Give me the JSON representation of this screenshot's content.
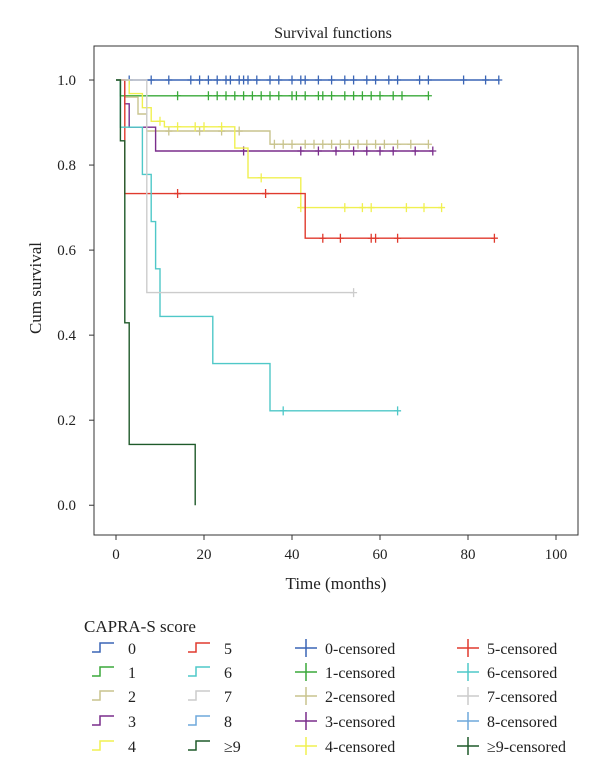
{
  "chart_data": {
    "type": "line",
    "subtype": "kaplan-meier step",
    "title": "Survival functions",
    "xlabel": "Time (months)",
    "ylabel": "Cum survival",
    "xlim": [
      -5,
      105
    ],
    "ylim": [
      -0.07,
      1.08
    ],
    "x_ticks": [
      0,
      20,
      40,
      60,
      80,
      100
    ],
    "y_ticks": [
      0.0,
      0.2,
      0.4,
      0.6,
      0.8,
      1.0
    ],
    "x_tick_labels": [
      "0",
      "20",
      "40",
      "60",
      "80",
      "100"
    ],
    "y_tick_labels": [
      "0.0",
      "0.2",
      "0.4",
      "0.6",
      "0.8",
      "1.0"
    ],
    "grid": false,
    "legend": {
      "title": "CAPRA-S score",
      "placement": "bottom",
      "censored_suffix": "-censored"
    },
    "series": [
      {
        "name": "0",
        "color": "#3a65b5",
        "steps": [
          [
            0,
            1.0
          ],
          [
            87,
            1.0
          ]
        ],
        "censored": [
          [
            3,
            1.0
          ],
          [
            8,
            1.0
          ],
          [
            12,
            1.0
          ],
          [
            17,
            1.0
          ],
          [
            19,
            1.0
          ],
          [
            21,
            1.0
          ],
          [
            23,
            1.0
          ],
          [
            25,
            1.0
          ],
          [
            26,
            1.0
          ],
          [
            28,
            1.0
          ],
          [
            29,
            1.0
          ],
          [
            30,
            1.0
          ],
          [
            32,
            1.0
          ],
          [
            35,
            1.0
          ],
          [
            37,
            1.0
          ],
          [
            40,
            1.0
          ],
          [
            42,
            1.0
          ],
          [
            43,
            1.0
          ],
          [
            46,
            1.0
          ],
          [
            49,
            1.0
          ],
          [
            52,
            1.0
          ],
          [
            54,
            1.0
          ],
          [
            57,
            1.0
          ],
          [
            59,
            1.0
          ],
          [
            62,
            1.0
          ],
          [
            64,
            1.0
          ],
          [
            69,
            1.0
          ],
          [
            71,
            1.0
          ],
          [
            79,
            1.0
          ],
          [
            84,
            1.0
          ],
          [
            87,
            1.0
          ]
        ]
      },
      {
        "name": "1",
        "color": "#3aa93a",
        "steps": [
          [
            0,
            1.0
          ],
          [
            1,
            1.0
          ],
          [
            1,
            0.963
          ],
          [
            71,
            0.963
          ]
        ],
        "censored": [
          [
            14,
            0.963
          ],
          [
            21,
            0.963
          ],
          [
            23,
            0.963
          ],
          [
            25,
            0.963
          ],
          [
            27,
            0.963
          ],
          [
            29,
            0.963
          ],
          [
            31,
            0.963
          ],
          [
            33,
            0.963
          ],
          [
            35,
            0.963
          ],
          [
            37,
            0.963
          ],
          [
            40,
            0.963
          ],
          [
            41,
            0.963
          ],
          [
            43,
            0.963
          ],
          [
            46,
            0.963
          ],
          [
            47,
            0.963
          ],
          [
            49,
            0.963
          ],
          [
            52,
            0.963
          ],
          [
            54,
            0.963
          ],
          [
            56,
            0.963
          ],
          [
            58,
            0.963
          ],
          [
            60,
            0.963
          ],
          [
            63,
            0.963
          ],
          [
            65,
            0.963
          ],
          [
            71,
            0.963
          ]
        ]
      },
      {
        "name": "2",
        "color": "#c9c48e",
        "steps": [
          [
            0,
            1.0
          ],
          [
            2,
            1.0
          ],
          [
            2,
            0.96
          ],
          [
            5,
            0.96
          ],
          [
            5,
            0.92
          ],
          [
            7,
            0.92
          ],
          [
            7,
            0.88
          ],
          [
            35,
            0.88
          ],
          [
            35,
            0.849
          ],
          [
            71,
            0.849
          ]
        ],
        "censored": [
          [
            12,
            0.88
          ],
          [
            19,
            0.88
          ],
          [
            24,
            0.88
          ],
          [
            28,
            0.88
          ],
          [
            36,
            0.849
          ],
          [
            38,
            0.849
          ],
          [
            40,
            0.849
          ],
          [
            43,
            0.849
          ],
          [
            45,
            0.849
          ],
          [
            47,
            0.849
          ],
          [
            49,
            0.849
          ],
          [
            51,
            0.849
          ],
          [
            53,
            0.849
          ],
          [
            55,
            0.849
          ],
          [
            57,
            0.849
          ],
          [
            59,
            0.849
          ],
          [
            61,
            0.849
          ],
          [
            64,
            0.849
          ],
          [
            67,
            0.849
          ],
          [
            71,
            0.849
          ]
        ]
      },
      {
        "name": "3",
        "color": "#7a2d8c",
        "steps": [
          [
            0,
            1.0
          ],
          [
            2,
            1.0
          ],
          [
            2,
            0.944
          ],
          [
            3,
            0.944
          ],
          [
            3,
            0.889
          ],
          [
            9,
            0.889
          ],
          [
            9,
            0.833
          ],
          [
            72,
            0.833
          ]
        ],
        "censored": [
          [
            29,
            0.833
          ],
          [
            42,
            0.833
          ],
          [
            46,
            0.833
          ],
          [
            50,
            0.833
          ],
          [
            54,
            0.833
          ],
          [
            57,
            0.833
          ],
          [
            60,
            0.833
          ],
          [
            63,
            0.833
          ],
          [
            68,
            0.833
          ],
          [
            72,
            0.833
          ]
        ]
      },
      {
        "name": "4",
        "color": "#f0f050",
        "steps": [
          [
            0,
            1.0
          ],
          [
            3,
            1.0
          ],
          [
            3,
            0.968
          ],
          [
            6,
            0.968
          ],
          [
            6,
            0.935
          ],
          [
            8,
            0.935
          ],
          [
            8,
            0.903
          ],
          [
            11,
            0.903
          ],
          [
            11,
            0.89
          ],
          [
            27,
            0.89
          ],
          [
            27,
            0.84
          ],
          [
            30,
            0.84
          ],
          [
            30,
            0.77
          ],
          [
            42,
            0.77
          ],
          [
            42,
            0.7
          ],
          [
            74,
            0.7
          ]
        ],
        "censored": [
          [
            10,
            0.903
          ],
          [
            14,
            0.89
          ],
          [
            18,
            0.89
          ],
          [
            20,
            0.89
          ],
          [
            24,
            0.89
          ],
          [
            33,
            0.77
          ],
          [
            42,
            0.7
          ],
          [
            52,
            0.7
          ],
          [
            56,
            0.7
          ],
          [
            58,
            0.7
          ],
          [
            66,
            0.7
          ],
          [
            70,
            0.7
          ],
          [
            74,
            0.7
          ]
        ]
      },
      {
        "name": "5",
        "color": "#e03a2e",
        "steps": [
          [
            0,
            1.0
          ],
          [
            2,
            1.0
          ],
          [
            2,
            0.733
          ],
          [
            43,
            0.733
          ],
          [
            43,
            0.628
          ],
          [
            86,
            0.628
          ]
        ],
        "censored": [
          [
            14,
            0.733
          ],
          [
            34,
            0.733
          ],
          [
            47,
            0.628
          ],
          [
            51,
            0.628
          ],
          [
            58,
            0.628
          ],
          [
            59,
            0.628
          ],
          [
            64,
            0.628
          ],
          [
            86,
            0.628
          ]
        ]
      },
      {
        "name": "6",
        "color": "#4fc8c8",
        "steps": [
          [
            0,
            1.0
          ],
          [
            1,
            1.0
          ],
          [
            1,
            0.889
          ],
          [
            6,
            0.889
          ],
          [
            6,
            0.778
          ],
          [
            8,
            0.778
          ],
          [
            8,
            0.667
          ],
          [
            9,
            0.667
          ],
          [
            9,
            0.556
          ],
          [
            10,
            0.556
          ],
          [
            10,
            0.444
          ],
          [
            22,
            0.444
          ],
          [
            22,
            0.333
          ],
          [
            35,
            0.333
          ],
          [
            35,
            0.222
          ],
          [
            64,
            0.222
          ]
        ],
        "censored": [
          [
            38,
            0.222
          ],
          [
            64,
            0.222
          ]
        ]
      },
      {
        "name": "7",
        "color": "#cccccc",
        "steps": [
          [
            0,
            1.0
          ],
          [
            7,
            1.0
          ],
          [
            7,
            0.5
          ],
          [
            54,
            0.5
          ]
        ],
        "censored": [
          [
            54,
            0.5
          ]
        ]
      },
      {
        "name": "8",
        "color": "#6fa8dc",
        "steps": [],
        "censored": []
      },
      {
        "name": "≥9",
        "color": "#1f5a2a",
        "steps": [
          [
            0,
            1.0
          ],
          [
            1,
            1.0
          ],
          [
            1,
            0.857
          ],
          [
            2,
            0.857
          ],
          [
            2,
            0.429
          ],
          [
            3,
            0.429
          ],
          [
            3,
            0.143
          ],
          [
            18,
            0.143
          ],
          [
            18,
            0.0
          ]
        ],
        "censored": []
      }
    ]
  }
}
